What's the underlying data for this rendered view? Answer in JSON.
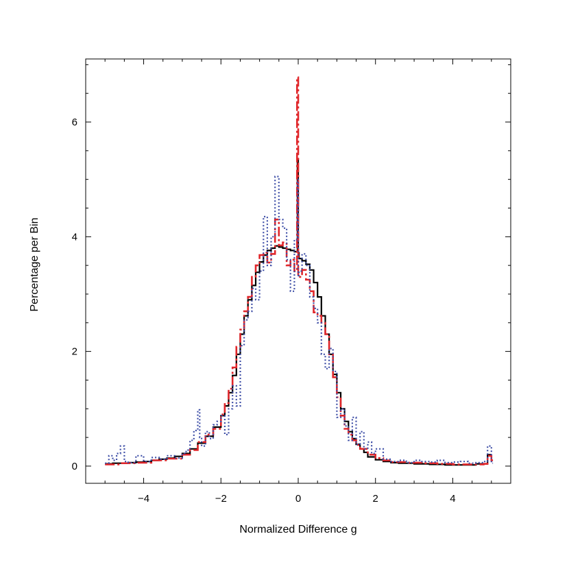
{
  "chart_data": {
    "type": "step-histogram",
    "title": "",
    "xlabel": "Normalized Difference g",
    "ylabel": "Percentage per Bin",
    "xlim": [
      -5.5,
      5.5
    ],
    "ylim": [
      -0.3,
      7.1
    ],
    "xticks": [
      -4,
      -2,
      0,
      2,
      4
    ],
    "xtick_labels": [
      "−4",
      "−2",
      "0",
      "2",
      "4"
    ],
    "yticks": [
      0,
      2,
      4,
      6
    ],
    "ytick_labels": [
      "0",
      "2",
      "4",
      "6"
    ],
    "x_minor_step": 0.5,
    "y_minor_step": 0.5,
    "grid": false,
    "series": [
      {
        "name": "black-solid",
        "color": "#000000",
        "style": "solid",
        "x": [
          -5.0,
          -4.8,
          -4.6,
          -4.4,
          -4.2,
          -4.0,
          -3.8,
          -3.6,
          -3.4,
          -3.2,
          -3.0,
          -2.8,
          -2.6,
          -2.4,
          -2.2,
          -2.0,
          -1.9,
          -1.8,
          -1.7,
          -1.6,
          -1.5,
          -1.4,
          -1.3,
          -1.2,
          -1.1,
          -1.0,
          -0.9,
          -0.8,
          -0.7,
          -0.6,
          -0.5,
          -0.4,
          -0.3,
          -0.2,
          -0.1,
          -0.02,
          0.0,
          0.02,
          0.1,
          0.2,
          0.3,
          0.4,
          0.5,
          0.6,
          0.7,
          0.8,
          0.9,
          1.0,
          1.1,
          1.2,
          1.3,
          1.4,
          1.5,
          1.6,
          1.7,
          1.8,
          2.0,
          2.2,
          2.4,
          2.6,
          2.8,
          3.0,
          3.4,
          3.8,
          4.2,
          4.6,
          4.9,
          5.0
        ],
        "values": [
          0.04,
          0.05,
          0.05,
          0.06,
          0.07,
          0.08,
          0.1,
          0.12,
          0.14,
          0.17,
          0.22,
          0.3,
          0.4,
          0.52,
          0.68,
          0.88,
          1.05,
          1.28,
          1.58,
          1.95,
          2.3,
          2.62,
          2.9,
          3.15,
          3.38,
          3.56,
          3.68,
          3.76,
          3.8,
          3.84,
          3.82,
          3.8,
          3.78,
          3.76,
          3.74,
          5.35,
          3.72,
          3.62,
          3.58,
          3.52,
          3.42,
          3.2,
          2.95,
          2.62,
          2.3,
          1.95,
          1.6,
          1.28,
          1.0,
          0.78,
          0.6,
          0.48,
          0.38,
          0.3,
          0.24,
          0.16,
          0.11,
          0.08,
          0.06,
          0.05,
          0.05,
          0.04,
          0.03,
          0.02,
          0.02,
          0.04,
          0.2
        ]
      },
      {
        "name": "red-dash-dot",
        "color": "#e0262a",
        "style": "dashdot",
        "x": [
          -5.0,
          -4.6,
          -4.2,
          -3.8,
          -3.4,
          -3.0,
          -2.8,
          -2.6,
          -2.4,
          -2.2,
          -2.0,
          -1.9,
          -1.8,
          -1.7,
          -1.6,
          -1.5,
          -1.4,
          -1.3,
          -1.2,
          -1.1,
          -1.0,
          -0.9,
          -0.8,
          -0.7,
          -0.6,
          -0.5,
          -0.4,
          -0.3,
          -0.2,
          -0.1,
          -0.03,
          0.0,
          0.03,
          0.1,
          0.2,
          0.3,
          0.4,
          0.5,
          0.6,
          0.7,
          0.8,
          0.9,
          1.0,
          1.1,
          1.2,
          1.3,
          1.4,
          1.5,
          1.6,
          1.8,
          2.0,
          2.2,
          2.4,
          2.8,
          3.2,
          3.6,
          4.0,
          4.4,
          4.8,
          4.9,
          5.0
        ],
        "values": [
          0.03,
          0.05,
          0.06,
          0.1,
          0.13,
          0.2,
          0.28,
          0.42,
          0.55,
          0.65,
          0.9,
          1.1,
          1.35,
          1.72,
          2.08,
          2.38,
          2.7,
          2.95,
          3.3,
          3.5,
          3.68,
          3.72,
          3.55,
          3.7,
          4.3,
          3.85,
          3.9,
          3.5,
          3.6,
          3.4,
          6.78,
          3.3,
          3.3,
          3.42,
          3.25,
          3.05,
          2.68,
          2.62,
          2.5,
          2.3,
          1.95,
          1.55,
          1.2,
          0.88,
          0.65,
          0.55,
          0.45,
          0.37,
          0.3,
          0.2,
          0.14,
          0.1,
          0.07,
          0.06,
          0.05,
          0.04,
          0.03,
          0.03,
          0.04,
          0.18,
          0.1
        ]
      },
      {
        "name": "blue-dotted",
        "color": "#3c4da6",
        "style": "dotted",
        "x": [
          -5.0,
          -4.9,
          -4.8,
          -4.7,
          -4.6,
          -4.5,
          -4.4,
          -4.2,
          -4.0,
          -3.8,
          -3.6,
          -3.4,
          -3.2,
          -3.0,
          -2.9,
          -2.8,
          -2.7,
          -2.6,
          -2.55,
          -2.5,
          -2.4,
          -2.3,
          -2.2,
          -2.1,
          -2.0,
          -1.9,
          -1.8,
          -1.7,
          -1.6,
          -1.5,
          -1.4,
          -1.3,
          -1.2,
          -1.1,
          -1.0,
          -0.9,
          -0.8,
          -0.7,
          -0.6,
          -0.5,
          -0.4,
          -0.3,
          -0.2,
          -0.1,
          -0.02,
          0.0,
          0.02,
          0.1,
          0.2,
          0.3,
          0.4,
          0.5,
          0.6,
          0.7,
          0.8,
          0.9,
          1.0,
          1.1,
          1.2,
          1.3,
          1.4,
          1.5,
          1.6,
          1.7,
          1.8,
          1.9,
          2.0,
          2.2,
          2.4,
          2.6,
          2.8,
          3.0,
          3.2,
          3.4,
          3.6,
          3.8,
          4.0,
          4.2,
          4.4,
          4.6,
          4.8,
          4.9,
          5.0
        ],
        "values": [
          0.05,
          0.18,
          0.1,
          0.22,
          0.35,
          0.08,
          0.06,
          0.18,
          0.08,
          0.15,
          0.12,
          0.18,
          0.14,
          0.22,
          0.28,
          0.45,
          0.62,
          0.98,
          0.5,
          0.35,
          0.6,
          0.48,
          0.72,
          0.78,
          0.88,
          0.55,
          1.0,
          1.4,
          1.05,
          2.1,
          2.55,
          2.7,
          3.1,
          2.9,
          3.4,
          4.35,
          3.5,
          4.0,
          5.05,
          4.3,
          4.15,
          3.6,
          3.05,
          3.95,
          5.0,
          3.3,
          3.4,
          3.7,
          3.5,
          2.95,
          2.75,
          2.5,
          1.95,
          1.7,
          2.05,
          1.65,
          0.85,
          1.0,
          0.7,
          0.45,
          0.85,
          0.38,
          0.6,
          0.3,
          0.42,
          0.22,
          0.3,
          0.12,
          0.08,
          0.1,
          0.06,
          0.1,
          0.08,
          0.07,
          0.1,
          0.06,
          0.07,
          0.08,
          0.05,
          0.06,
          0.08,
          0.35,
          0.05
        ]
      }
    ]
  }
}
